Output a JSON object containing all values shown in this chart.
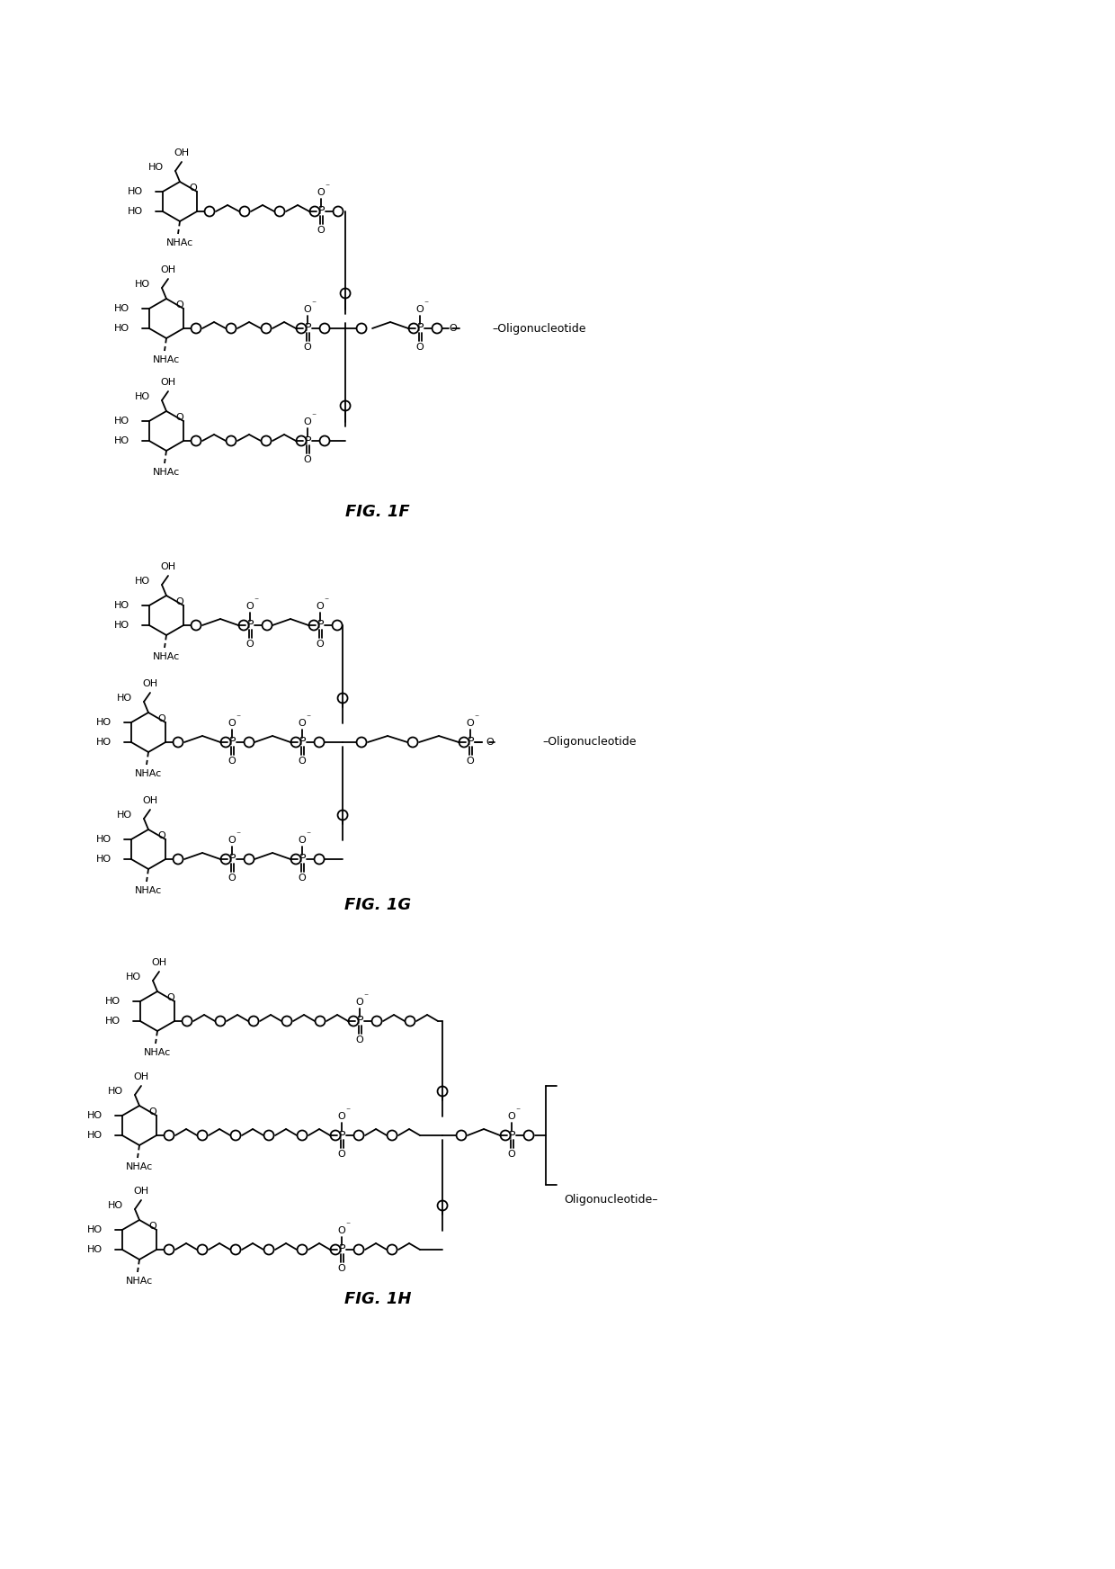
{
  "background_color": "#ffffff",
  "fig_width": 12.4,
  "fig_height": 17.44,
  "fig_label_F": "FIG. 1F",
  "fig_label_G": "FIG. 1G",
  "fig_label_H": "FIG. 1H"
}
